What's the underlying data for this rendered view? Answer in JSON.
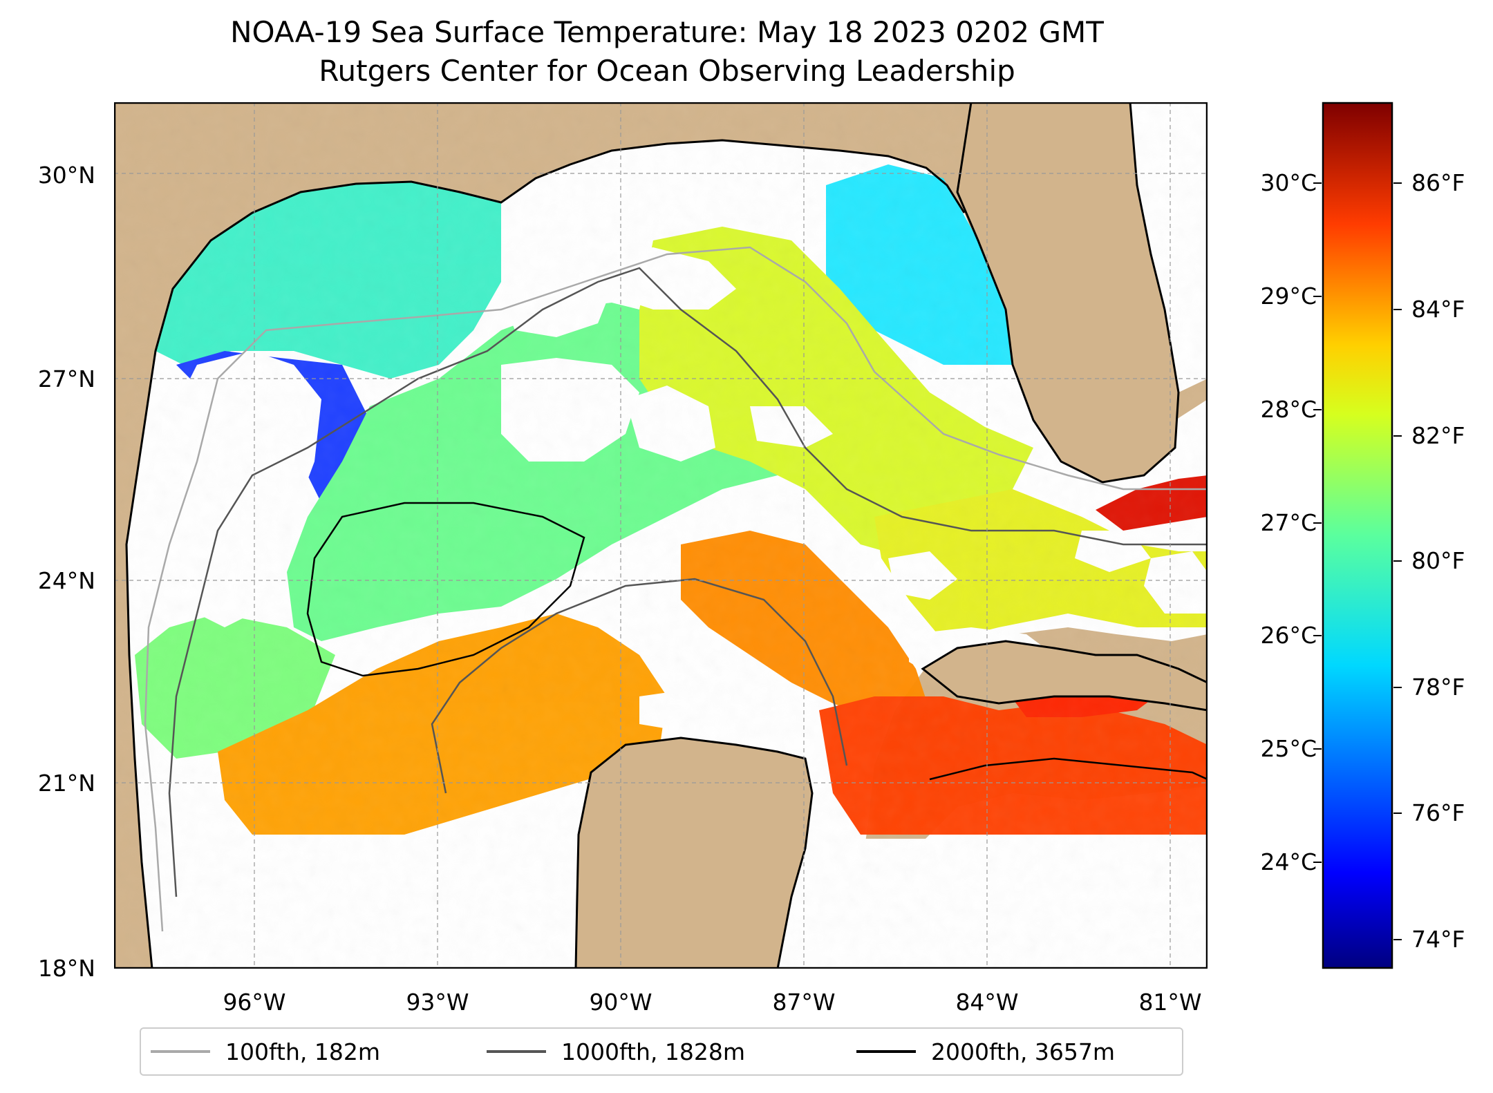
{
  "title": {
    "line1": "NOAA-19 Sea Surface Temperature: May 18 2023 0202 GMT",
    "line2": "Rutgers Center for Ocean Observing Leadership"
  },
  "map": {
    "land_color": "#d2b48c",
    "no_data_color": "#ffffff",
    "grid": true,
    "lat_ticks": [
      "30°N",
      "27°N",
      "24°N",
      "21°N",
      "18°N"
    ],
    "lon_ticks": [
      "96°W",
      "93°W",
      "90°W",
      "87°W",
      "84°W",
      "81°W"
    ]
  },
  "colorbar": {
    "colormap": "jet",
    "celsius_ticks": [
      "30°C",
      "29°C",
      "28°C",
      "27°C",
      "26°C",
      "25°C",
      "24°C"
    ],
    "fahrenheit_ticks": [
      "86°F",
      "84°F",
      "82°F",
      "80°F",
      "78°F",
      "76°F",
      "74°F"
    ]
  },
  "legend": {
    "items": [
      {
        "label": "100fth, 182m",
        "color": "#a9a9a9"
      },
      {
        "label": "1000fth, 1828m",
        "color": "#555555"
      },
      {
        "label": "2000fth, 3657m",
        "color": "#000000"
      }
    ]
  }
}
